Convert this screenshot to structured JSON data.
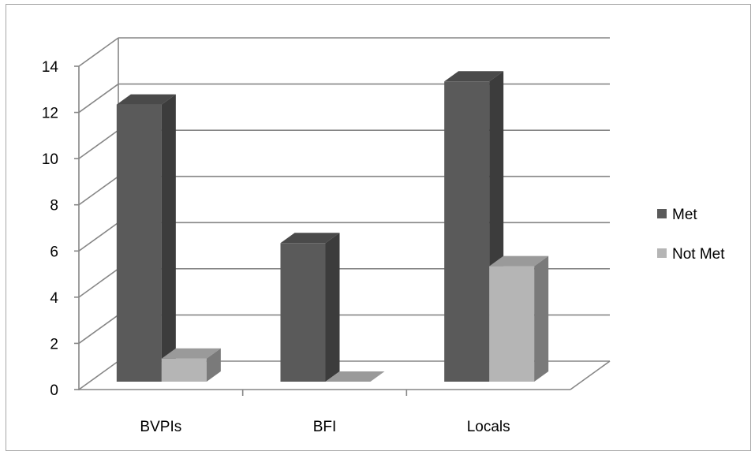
{
  "chart_data": {
    "type": "bar",
    "categories": [
      "BVPIs",
      "BFI",
      "Locals"
    ],
    "series": [
      {
        "name": "Met",
        "values": [
          12,
          6,
          13
        ]
      },
      {
        "name": "Not Met",
        "values": [
          1,
          0,
          5
        ]
      }
    ],
    "ylim": [
      0,
      14
    ],
    "yticks": [
      0,
      2,
      4,
      6,
      8,
      10,
      12,
      14
    ],
    "grid": true,
    "legend": "right",
    "style": "3d-clustered-column",
    "colors": {
      "Met": {
        "front": "#5a5a5a",
        "top": "#4a4a4a",
        "side": "#3c3c3c"
      },
      "Not Met": {
        "front": "#b5b5b5",
        "top": "#9a9a9a",
        "side": "#7a7a7a"
      },
      "axis": "#868686",
      "grid": "#868686"
    }
  }
}
